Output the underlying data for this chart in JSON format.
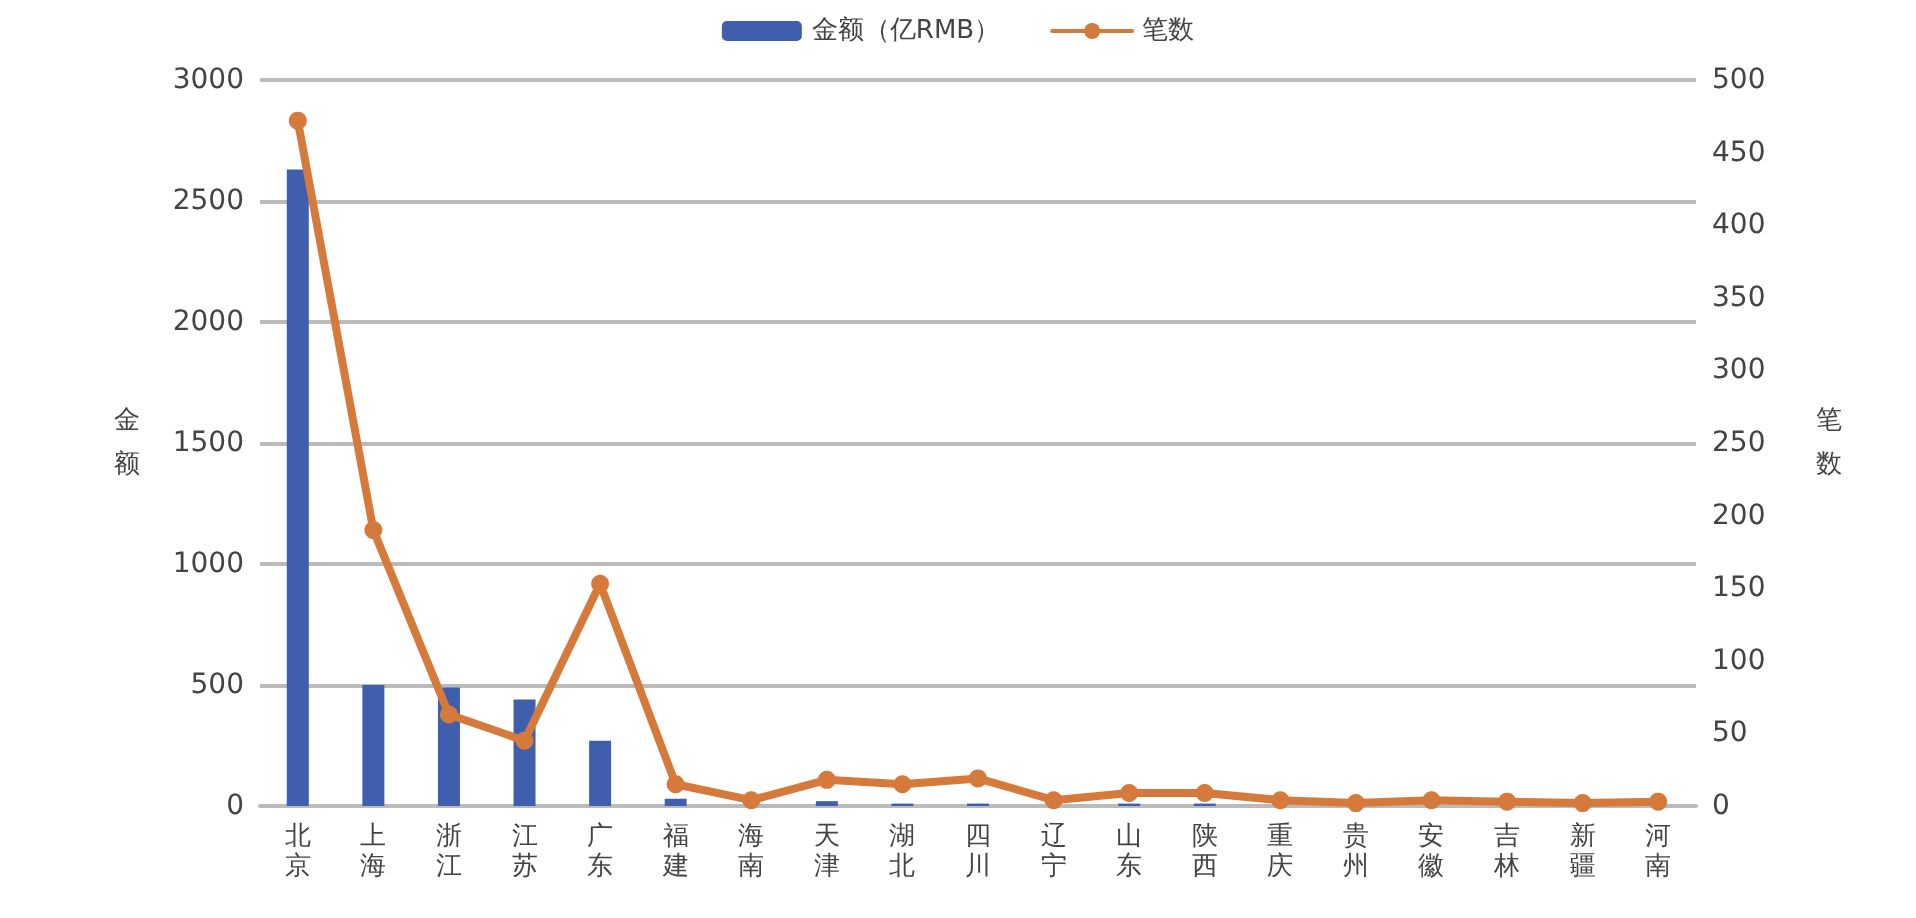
{
  "chart_data": {
    "type": "bar",
    "categories": [
      "北京",
      "上海",
      "浙江",
      "江苏",
      "广东",
      "福建",
      "海南",
      "天津",
      "湖北",
      "四川",
      "辽宁",
      "山东",
      "陕西",
      "重庆",
      "贵州",
      "安徽",
      "吉林",
      "新疆",
      "河南"
    ],
    "series": [
      {
        "name": "金额（亿RMB）",
        "color": "#3f5fae",
        "values": [
          2630,
          500,
          490,
          440,
          270,
          30,
          0,
          20,
          10,
          10,
          0,
          10,
          10,
          0,
          0,
          0,
          0,
          0,
          0
        ]
      },
      {
        "name": "笔数",
        "type": "line",
        "axis": "y2",
        "color": "#d67a3c",
        "values": [
          472,
          190,
          63,
          45,
          153,
          15,
          4,
          18,
          15,
          19,
          4,
          9,
          9,
          4,
          2,
          4,
          3,
          2,
          3
        ]
      }
    ],
    "ylabel": "金额",
    "y2label": "笔数",
    "ylim": [
      0,
      3000
    ],
    "yticks": [
      0,
      500,
      1000,
      1500,
      2000,
      2500,
      3000
    ],
    "y2lim": [
      0,
      500
    ],
    "y2ticks": [
      0,
      50,
      100,
      150,
      200,
      250,
      300,
      350,
      400,
      450,
      500
    ],
    "grid": "y",
    "legend": "top",
    "marker": "circle",
    "line_style": "solid"
  }
}
